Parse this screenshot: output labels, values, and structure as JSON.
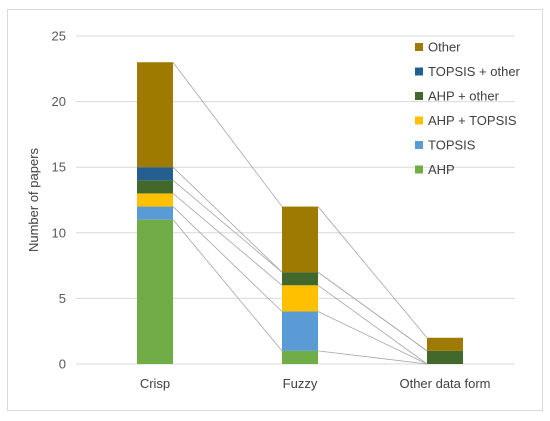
{
  "chart_data": {
    "type": "bar",
    "stacked": true,
    "categories": [
      "Crisp",
      "Fuzzy",
      "Other data form"
    ],
    "series": [
      {
        "name": "AHP",
        "color": "#70ad47",
        "values": [
          11,
          1,
          0
        ]
      },
      {
        "name": "TOPSIS",
        "color": "#5b9bd5",
        "values": [
          1,
          3,
          0
        ]
      },
      {
        "name": "AHP + TOPSIS",
        "color": "#ffc000",
        "values": [
          1,
          2,
          0
        ]
      },
      {
        "name": "AHP + other",
        "color": "#43682b",
        "values": [
          1,
          1,
          1
        ]
      },
      {
        "name": "TOPSIS + other",
        "color": "#255e91",
        "values": [
          1,
          0,
          0
        ]
      },
      {
        "name": "Other",
        "color": "#9e7a00",
        "values": [
          8,
          5,
          1
        ]
      }
    ],
    "ylabel": "Number of papers",
    "xlabel": "",
    "ylim": [
      0,
      25
    ],
    "yticks": [
      "0",
      "5",
      "10",
      "15",
      "20",
      "25"
    ],
    "legend_position": "right",
    "legend_order": [
      "Other",
      "TOPSIS + other",
      "AHP + other",
      "AHP + TOPSIS",
      "TOPSIS",
      "AHP"
    ],
    "grid": true,
    "series_lines": true
  }
}
